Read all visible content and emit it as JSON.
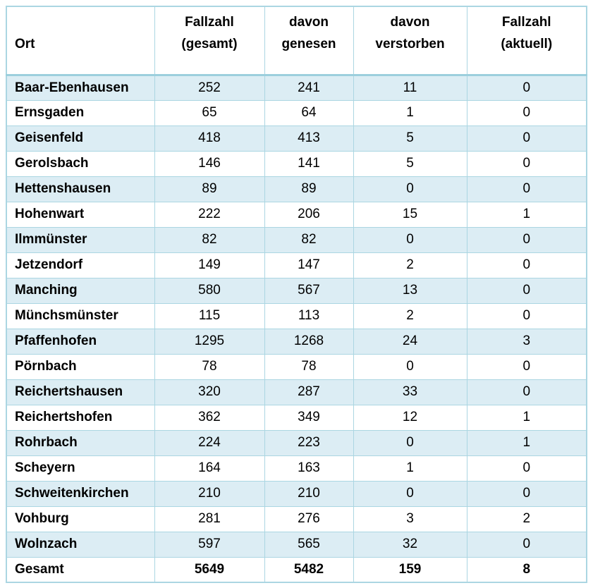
{
  "colors": {
    "stripe": "#dcedf4",
    "border": "#abd6e2",
    "header_divider": "#9ccfdd",
    "text": "#000000",
    "background": "#ffffff"
  },
  "table": {
    "columns": [
      {
        "key": "ort",
        "label": "Ort",
        "label_lines": [
          "Ort"
        ]
      },
      {
        "key": "gesamt",
        "label": "Fallzahl (gesamt)",
        "label_lines": [
          "Fallzahl",
          "(gesamt)"
        ]
      },
      {
        "key": "genesen",
        "label": "davon genesen",
        "label_lines": [
          "davon",
          "genesen"
        ]
      },
      {
        "key": "verstorben",
        "label": "davon verstorben",
        "label_lines": [
          "davon",
          "verstorben"
        ]
      },
      {
        "key": "aktuell",
        "label": "Fallzahl (aktuell)",
        "label_lines": [
          "Fallzahl",
          "(aktuell)"
        ]
      }
    ],
    "rows": [
      {
        "ort": "Baar-Ebenhausen",
        "gesamt": "252",
        "genesen": "241",
        "verstorben": "11",
        "aktuell": "0"
      },
      {
        "ort": "Ernsgaden",
        "gesamt": "65",
        "genesen": "64",
        "verstorben": "1",
        "aktuell": "0"
      },
      {
        "ort": "Geisenfeld",
        "gesamt": "418",
        "genesen": "413",
        "verstorben": "5",
        "aktuell": "0"
      },
      {
        "ort": "Gerolsbach",
        "gesamt": "146",
        "genesen": "141",
        "verstorben": "5",
        "aktuell": "0"
      },
      {
        "ort": "Hettenshausen",
        "gesamt": "89",
        "genesen": "89",
        "verstorben": "0",
        "aktuell": "0"
      },
      {
        "ort": "Hohenwart",
        "gesamt": "222",
        "genesen": "206",
        "verstorben": "15",
        "aktuell": "1"
      },
      {
        "ort": "Ilmmünster",
        "gesamt": "82",
        "genesen": "82",
        "verstorben": "0",
        "aktuell": "0"
      },
      {
        "ort": "Jetzendorf",
        "gesamt": "149",
        "genesen": "147",
        "verstorben": "2",
        "aktuell": "0"
      },
      {
        "ort": "Manching",
        "gesamt": "580",
        "genesen": "567",
        "verstorben": "13",
        "aktuell": "0"
      },
      {
        "ort": "Münchsmünster",
        "gesamt": "115",
        "genesen": "113",
        "verstorben": "2",
        "aktuell": "0"
      },
      {
        "ort": "Pfaffenhofen",
        "gesamt": "1295",
        "genesen": "1268",
        "verstorben": "24",
        "aktuell": "3"
      },
      {
        "ort": "Pörnbach",
        "gesamt": "78",
        "genesen": "78",
        "verstorben": "0",
        "aktuell": "0"
      },
      {
        "ort": "Reichertshausen",
        "gesamt": "320",
        "genesen": "287",
        "verstorben": "33",
        "aktuell": "0"
      },
      {
        "ort": "Reichertshofen",
        "gesamt": "362",
        "genesen": "349",
        "verstorben": "12",
        "aktuell": "1"
      },
      {
        "ort": "Rohrbach",
        "gesamt": "224",
        "genesen": "223",
        "verstorben": "0",
        "aktuell": "1"
      },
      {
        "ort": "Scheyern",
        "gesamt": "164",
        "genesen": "163",
        "verstorben": "1",
        "aktuell": "0"
      },
      {
        "ort": "Schweitenkirchen",
        "gesamt": "210",
        "genesen": "210",
        "verstorben": "0",
        "aktuell": "0"
      },
      {
        "ort": "Vohburg",
        "gesamt": "281",
        "genesen": "276",
        "verstorben": "3",
        "aktuell": "2"
      },
      {
        "ort": "Wolnzach",
        "gesamt": "597",
        "genesen": "565",
        "verstorben": "32",
        "aktuell": "0"
      },
      {
        "ort": "Gesamt",
        "gesamt": "5649",
        "genesen": "5482",
        "verstorben": "159",
        "aktuell": "8",
        "total": true
      }
    ]
  }
}
